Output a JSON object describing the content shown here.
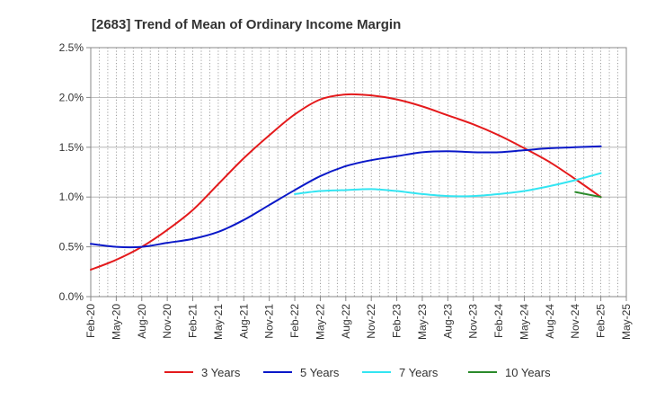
{
  "chart_data": {
    "type": "line",
    "title": "[2683]  Trend of Mean of Ordinary Income Margin",
    "xlabel": "",
    "ylabel": "",
    "ylim": [
      0,
      2.5
    ],
    "yticks": [
      0,
      0.5,
      1.0,
      1.5,
      2.0,
      2.5
    ],
    "ytick_labels": [
      "0.0%",
      "0.5%",
      "1.0%",
      "1.5%",
      "2.0%",
      "2.5%"
    ],
    "x_tick_labels": [
      "Feb-20",
      "May-20",
      "Aug-20",
      "Nov-20",
      "Feb-21",
      "May-21",
      "Aug-21",
      "Nov-21",
      "Feb-22",
      "May-22",
      "Aug-22",
      "Nov-22",
      "Feb-23",
      "May-23",
      "Aug-23",
      "Nov-23",
      "Feb-24",
      "May-24",
      "Aug-24",
      "Nov-24",
      "Feb-25",
      "May-25"
    ],
    "grid": true,
    "legend_position": "bottom",
    "series": [
      {
        "name": "3 Years",
        "color": "#e41a1c",
        "points": [
          [
            "Feb-20",
            0.27
          ],
          [
            "May-20",
            0.37
          ],
          [
            "Aug-20",
            0.5
          ],
          [
            "Nov-20",
            0.67
          ],
          [
            "Feb-21",
            0.87
          ],
          [
            "May-21",
            1.13
          ],
          [
            "Aug-21",
            1.39
          ],
          [
            "Nov-21",
            1.62
          ],
          [
            "Feb-22",
            1.83
          ],
          [
            "May-22",
            1.98
          ],
          [
            "Aug-22",
            2.03
          ],
          [
            "Nov-22",
            2.02
          ],
          [
            "Feb-23",
            1.98
          ],
          [
            "May-23",
            1.91
          ],
          [
            "Aug-23",
            1.82
          ],
          [
            "Nov-23",
            1.73
          ],
          [
            "Feb-24",
            1.62
          ],
          [
            "May-24",
            1.49
          ],
          [
            "Aug-24",
            1.35
          ],
          [
            "Nov-24",
            1.18
          ],
          [
            "Feb-25",
            1.0
          ]
        ]
      },
      {
        "name": "5 Years",
        "color": "#0a18c8",
        "points": [
          [
            "Feb-20",
            0.53
          ],
          [
            "May-20",
            0.5
          ],
          [
            "Aug-20",
            0.5
          ],
          [
            "Nov-20",
            0.54
          ],
          [
            "Feb-21",
            0.58
          ],
          [
            "May-21",
            0.65
          ],
          [
            "Aug-21",
            0.77
          ],
          [
            "Nov-21",
            0.92
          ],
          [
            "Feb-22",
            1.07
          ],
          [
            "May-22",
            1.21
          ],
          [
            "Aug-22",
            1.31
          ],
          [
            "Nov-22",
            1.37
          ],
          [
            "Feb-23",
            1.41
          ],
          [
            "May-23",
            1.45
          ],
          [
            "Aug-23",
            1.46
          ],
          [
            "Nov-23",
            1.45
          ],
          [
            "Feb-24",
            1.45
          ],
          [
            "May-24",
            1.47
          ],
          [
            "Aug-24",
            1.49
          ],
          [
            "Nov-24",
            1.5
          ],
          [
            "Feb-25",
            1.51
          ]
        ]
      },
      {
        "name": "7 Years",
        "color": "#33e5f2",
        "points": [
          [
            "Feb-22",
            1.03
          ],
          [
            "May-22",
            1.06
          ],
          [
            "Aug-22",
            1.07
          ],
          [
            "Nov-22",
            1.08
          ],
          [
            "Feb-23",
            1.06
          ],
          [
            "May-23",
            1.03
          ],
          [
            "Aug-23",
            1.01
          ],
          [
            "Nov-23",
            1.01
          ],
          [
            "Feb-24",
            1.03
          ],
          [
            "May-24",
            1.06
          ],
          [
            "Aug-24",
            1.11
          ],
          [
            "Nov-24",
            1.17
          ],
          [
            "Feb-25",
            1.24
          ]
        ]
      },
      {
        "name": "10 Years",
        "color": "#2a8a2a",
        "points": [
          [
            "Nov-24",
            1.05
          ],
          [
            "Feb-25",
            1.0
          ]
        ]
      }
    ]
  }
}
